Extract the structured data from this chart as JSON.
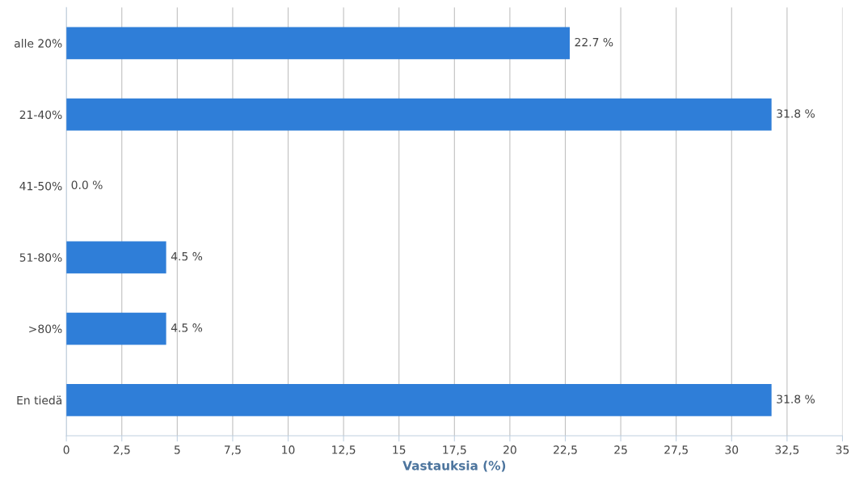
{
  "chart_data": {
    "type": "bar",
    "orientation": "horizontal",
    "xlabel": "Vastauksia (%)",
    "categories": [
      "alle 20%",
      "21-40%",
      "41-50%",
      "51-80%",
      ">80%",
      "En tiedä"
    ],
    "values": [
      22.7,
      31.8,
      0.0,
      4.5,
      4.5,
      31.8
    ],
    "value_labels": [
      "22.7 %",
      "31.8 %",
      "0.0 %",
      "4.5 %",
      "4.5 %",
      "31.8 %"
    ],
    "color": "#2f7ed8",
    "xlim": [
      0,
      35
    ],
    "xticks": [
      0,
      {
        "value": 2.5,
        "label": "2,5"
      },
      5,
      {
        "value": 7.5,
        "label": "7,5"
      },
      10,
      {
        "value": 12.5,
        "label": "12,5"
      },
      15,
      {
        "value": 17.5,
        "label": "17,5"
      },
      20,
      {
        "value": 22.5,
        "label": "22,5"
      },
      25,
      {
        "value": 27.5,
        "label": "27,5"
      },
      30,
      {
        "value": 32.5,
        "label": "32,5"
      },
      35
    ],
    "grid": "x",
    "legend": false
  }
}
